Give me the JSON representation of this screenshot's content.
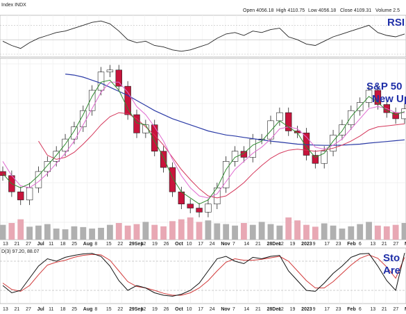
{
  "header": {
    "symbol": "Index INDX",
    "open": "Open 4056.18",
    "high": "High 4110.75",
    "low": "Low 4056.18",
    "close": "Close 4109.31",
    "volume": "Volume 2.5"
  },
  "annotations": {
    "rsi": "RSI",
    "main_line1": "S&P 50",
    "main_line2": "New Up",
    "stoch_line1": "Sto",
    "stoch_line2": "Are"
  },
  "stoch_legend": "D(3) 97.20, 88.07",
  "colors": {
    "up_candle": "#ffffff",
    "down_candle": "#c8143c",
    "sma_long": "#2a3aa6",
    "sma_mid": "#d4365a",
    "sma_short_pink": "#e06ad0",
    "ema_green": "#2f8a2f",
    "volume_up": "#b0b0b0",
    "volume_down": "#e8a8b4",
    "rsi_line": "#222222",
    "stoch_k": "#111111",
    "stoch_d": "#d23a3a"
  },
  "chart_data": {
    "type": "candlestick",
    "x_tick_labels": [
      {
        "label": "13",
        "bold": false
      },
      {
        "label": "21",
        "bold": false
      },
      {
        "label": "27",
        "bold": false
      },
      {
        "label": "Jul",
        "bold": true
      },
      {
        "label": "11",
        "bold": false
      },
      {
        "label": "18",
        "bold": false
      },
      {
        "label": "25",
        "bold": false
      },
      {
        "label": "Aug",
        "bold": true
      },
      {
        "label": "8",
        "bold": false
      },
      {
        "label": "15",
        "bold": false
      },
      {
        "label": "22",
        "bold": false
      },
      {
        "label": "29Sep",
        "bold": true
      },
      {
        "label": "12",
        "bold": false
      },
      {
        "label": "19",
        "bold": false
      },
      {
        "label": "26",
        "bold": false
      },
      {
        "label": "Oct",
        "bold": true
      },
      {
        "label": "10",
        "bold": false
      },
      {
        "label": "17",
        "bold": false
      },
      {
        "label": "24",
        "bold": false
      },
      {
        "label": "Nov",
        "bold": true
      },
      {
        "label": "7",
        "bold": false
      },
      {
        "label": "14",
        "bold": false
      },
      {
        "label": "21",
        "bold": false
      },
      {
        "label": "28Dec",
        "bold": true
      },
      {
        "label": "12",
        "bold": false
      },
      {
        "label": "19",
        "bold": false
      },
      {
        "label": "2023",
        "bold": true
      },
      {
        "label": "9",
        "bold": false
      },
      {
        "label": "17",
        "bold": false
      },
      {
        "label": "23",
        "bold": false
      },
      {
        "label": "Feb",
        "bold": true
      },
      {
        "label": "6",
        "bold": false
      },
      {
        "label": "13",
        "bold": false
      },
      {
        "label": "21",
        "bold": false
      },
      {
        "label": "27",
        "bold": false
      },
      {
        "label": "M",
        "bold": true
      }
    ],
    "price": [
      3780,
      3700,
      3660,
      3720,
      3800,
      3850,
      3900,
      3960,
      4020,
      4100,
      4200,
      4290,
      4300,
      4220,
      4080,
      3990,
      4030,
      3900,
      3820,
      3700,
      3640,
      3620,
      3600,
      3640,
      3720,
      3850,
      3900,
      3870,
      3960,
      3960,
      4050,
      4090,
      4000,
      3990,
      3880,
      3840,
      3900,
      3980,
      4030,
      4100,
      4140,
      4200,
      4130,
      4090,
      4060,
      4109
    ],
    "sma_long": [
      null,
      null,
      null,
      null,
      null,
      null,
      null,
      4280,
      4275,
      4265,
      4250,
      4235,
      4215,
      4195,
      4175,
      4150,
      4125,
      4100,
      4080,
      4060,
      4045,
      4030,
      4015,
      4000,
      3990,
      3980,
      3975,
      3968,
      3962,
      3956,
      3950,
      3945,
      3940,
      3935,
      3932,
      3930,
      3929,
      3929,
      3930,
      3932,
      3935,
      3940,
      3944,
      3948,
      3952,
      3956
    ],
    "sma_mid": [
      null,
      null,
      null,
      null,
      3950,
      3880,
      3860,
      3870,
      3895,
      3935,
      3980,
      4030,
      4070,
      4090,
      4085,
      4060,
      4020,
      3980,
      3930,
      3870,
      3810,
      3760,
      3715,
      3680,
      3670,
      3680,
      3710,
      3745,
      3790,
      3830,
      3865,
      3890,
      3905,
      3910,
      3905,
      3900,
      3905,
      3915,
      3930,
      3950,
      3975,
      4005,
      4020,
      4025,
      4030,
      4035
    ],
    "ema_green": [
      3790,
      3740,
      3720,
      3740,
      3780,
      3830,
      3880,
      3935,
      4000,
      4080,
      4170,
      4240,
      4250,
      4200,
      4110,
      4040,
      4030,
      3950,
      3870,
      3770,
      3700,
      3670,
      3640,
      3660,
      3720,
      3810,
      3870,
      3890,
      3930,
      3950,
      4000,
      4050,
      4020,
      3990,
      3920,
      3870,
      3890,
      3950,
      4000,
      4070,
      4120,
      4170,
      4140,
      4100,
      4080,
      4095
    ],
    "pink_avg": [
      3850,
      3780,
      3730,
      3720,
      3750,
      3790,
      3840,
      3890,
      3950,
      4030,
      4110,
      4190,
      4240,
      4240,
      4190,
      4120,
      4080,
      4020,
      3950,
      3860,
      3780,
      3720,
      3680,
      3670,
      3690,
      3750,
      3810,
      3850,
      3890,
      3920,
      3960,
      4010,
      4020,
      4010,
      3970,
      3920,
      3910,
      3930,
      3960,
      4010,
      4060,
      4110,
      4120,
      4110,
      4090,
      4090
    ],
    "volume": [
      40,
      45,
      55,
      35,
      38,
      42,
      30,
      28,
      36,
      34,
      30,
      32,
      40,
      45,
      38,
      42,
      48,
      40,
      36,
      50,
      55,
      60,
      48,
      52,
      44,
      42,
      38,
      45,
      40,
      48,
      42,
      38,
      60,
      52,
      40,
      35,
      44,
      38,
      30,
      36,
      42,
      48,
      38,
      36,
      40,
      45
    ],
    "rsi": [
      48,
      42,
      38,
      46,
      52,
      56,
      60,
      62,
      66,
      70,
      74,
      76,
      72,
      62,
      50,
      46,
      48,
      42,
      40,
      36,
      34,
      36,
      40,
      44,
      52,
      58,
      60,
      56,
      62,
      60,
      64,
      66,
      54,
      50,
      44,
      42,
      48,
      54,
      58,
      62,
      66,
      70,
      60,
      56,
      54,
      58
    ],
    "stoch_k": [
      30,
      15,
      20,
      45,
      70,
      85,
      80,
      88,
      92,
      95,
      96,
      90,
      70,
      40,
      20,
      30,
      25,
      15,
      10,
      8,
      12,
      20,
      35,
      60,
      85,
      90,
      80,
      75,
      88,
      85,
      90,
      92,
      60,
      40,
      20,
      18,
      35,
      55,
      70,
      88,
      95,
      96,
      70,
      40,
      20,
      97
    ],
    "stoch_d": [
      35,
      22,
      18,
      30,
      52,
      72,
      78,
      82,
      88,
      92,
      94,
      93,
      82,
      60,
      38,
      28,
      25,
      20,
      14,
      10,
      10,
      15,
      25,
      40,
      60,
      78,
      85,
      82,
      82,
      84,
      87,
      90,
      80,
      60,
      40,
      25,
      25,
      38,
      55,
      72,
      86,
      93,
      86,
      68,
      45,
      88
    ],
    "rsi_range": [
      30,
      80
    ],
    "price_range": [
      3550,
      4330
    ],
    "stoch_range": [
      0,
      100
    ]
  }
}
